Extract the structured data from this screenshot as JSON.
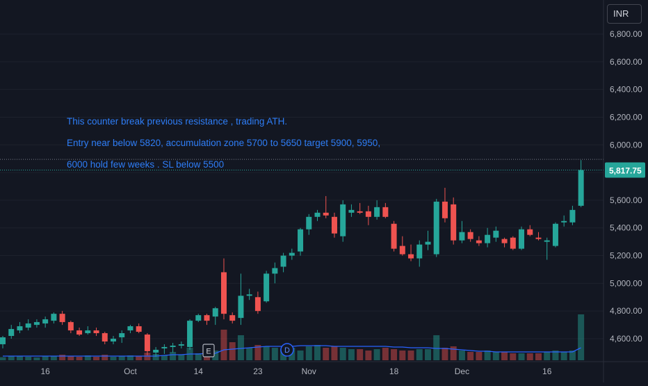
{
  "currency_button": "INR",
  "current_price_label": "5,817.75",
  "annotation": {
    "line1": "This counter break previous resistance , trading ATH.",
    "line2": "Entry near below 5820, accumulation zone 5700 to 5650 target 5900, 5950,",
    "line3": "6000 hold few weeks . SL below 5500"
  },
  "markers": {
    "earnings": "E",
    "dividend": "D"
  },
  "colors": {
    "up": "#26a69a",
    "down": "#ef5350",
    "background": "#131722",
    "annotation": "#2e7df6",
    "volume_ma": "#2962ff"
  },
  "chart_data": {
    "type": "candlestick",
    "y_axis": {
      "range": [
        4470,
        6900
      ],
      "ticks": [
        "4,600.00",
        "4,800.00",
        "5,000.00",
        "5,200.00",
        "5,400.00",
        "5,600.00",
        "5,800.00",
        "6,000.00",
        "6,200.00",
        "6,400.00",
        "6,600.00",
        "6,800.00"
      ]
    },
    "x_axis": {
      "tick_labels": [
        "16",
        "Oct",
        "14",
        "23",
        "Nov",
        "18",
        "Dec",
        "16"
      ],
      "tick_bar_index": [
        5,
        15,
        23,
        30,
        36,
        46,
        54,
        64
      ]
    },
    "last_price": 5817.75,
    "dotted_high_level": 5895,
    "candles": [
      {
        "o": 4560,
        "h": 4620,
        "l": 4530,
        "c": 4610
      },
      {
        "o": 4620,
        "h": 4700,
        "l": 4600,
        "c": 4670
      },
      {
        "o": 4660,
        "h": 4720,
        "l": 4640,
        "c": 4690
      },
      {
        "o": 4680,
        "h": 4740,
        "l": 4660,
        "c": 4710
      },
      {
        "o": 4700,
        "h": 4740,
        "l": 4680,
        "c": 4720
      },
      {
        "o": 4710,
        "h": 4760,
        "l": 4680,
        "c": 4740
      },
      {
        "o": 4730,
        "h": 4790,
        "l": 4710,
        "c": 4780
      },
      {
        "o": 4780,
        "h": 4800,
        "l": 4700,
        "c": 4720
      },
      {
        "o": 4720,
        "h": 4730,
        "l": 4640,
        "c": 4660
      },
      {
        "o": 4660,
        "h": 4680,
        "l": 4620,
        "c": 4630
      },
      {
        "o": 4640,
        "h": 4690,
        "l": 4630,
        "c": 4660
      },
      {
        "o": 4660,
        "h": 4680,
        "l": 4620,
        "c": 4640
      },
      {
        "o": 4640,
        "h": 4650,
        "l": 4560,
        "c": 4580
      },
      {
        "o": 4580,
        "h": 4620,
        "l": 4560,
        "c": 4600
      },
      {
        "o": 4610,
        "h": 4660,
        "l": 4570,
        "c": 4640
      },
      {
        "o": 4660,
        "h": 4700,
        "l": 4640,
        "c": 4690
      },
      {
        "o": 4690,
        "h": 4710,
        "l": 4640,
        "c": 4650
      },
      {
        "o": 4630,
        "h": 4640,
        "l": 4480,
        "c": 4510
      },
      {
        "o": 4500,
        "h": 4540,
        "l": 4470,
        "c": 4520
      },
      {
        "o": 4530,
        "h": 4560,
        "l": 4490,
        "c": 4540
      },
      {
        "o": 4540,
        "h": 4570,
        "l": 4500,
        "c": 4550
      },
      {
        "o": 4550,
        "h": 4580,
        "l": 4530,
        "c": 4560
      },
      {
        "o": 4540,
        "h": 4740,
        "l": 4520,
        "c": 4730
      },
      {
        "o": 4730,
        "h": 4780,
        "l": 4720,
        "c": 4770
      },
      {
        "o": 4770,
        "h": 4780,
        "l": 4700,
        "c": 4730
      },
      {
        "o": 4760,
        "h": 4830,
        "l": 4700,
        "c": 4820
      },
      {
        "o": 5080,
        "h": 5180,
        "l": 4740,
        "c": 4780
      },
      {
        "o": 4770,
        "h": 4790,
        "l": 4710,
        "c": 4730
      },
      {
        "o": 4750,
        "h": 5070,
        "l": 4700,
        "c": 4910
      },
      {
        "o": 4910,
        "h": 4960,
        "l": 4880,
        "c": 4920
      },
      {
        "o": 4900,
        "h": 4940,
        "l": 4780,
        "c": 4800
      },
      {
        "o": 4870,
        "h": 5090,
        "l": 4860,
        "c": 5070
      },
      {
        "o": 5070,
        "h": 5150,
        "l": 5000,
        "c": 5110
      },
      {
        "o": 5120,
        "h": 5220,
        "l": 5080,
        "c": 5200
      },
      {
        "o": 5200,
        "h": 5250,
        "l": 5170,
        "c": 5220
      },
      {
        "o": 5230,
        "h": 5400,
        "l": 5200,
        "c": 5390
      },
      {
        "o": 5390,
        "h": 5500,
        "l": 5350,
        "c": 5480
      },
      {
        "o": 5480,
        "h": 5530,
        "l": 5450,
        "c": 5510
      },
      {
        "o": 5510,
        "h": 5630,
        "l": 5470,
        "c": 5490
      },
      {
        "o": 5480,
        "h": 5510,
        "l": 5330,
        "c": 5360
      },
      {
        "o": 5340,
        "h": 5600,
        "l": 5300,
        "c": 5570
      },
      {
        "o": 5510,
        "h": 5570,
        "l": 5480,
        "c": 5530
      },
      {
        "o": 5520,
        "h": 5580,
        "l": 5500,
        "c": 5510
      },
      {
        "o": 5520,
        "h": 5560,
        "l": 5420,
        "c": 5480
      },
      {
        "o": 5480,
        "h": 5600,
        "l": 5460,
        "c": 5550
      },
      {
        "o": 5550,
        "h": 5580,
        "l": 5470,
        "c": 5480
      },
      {
        "o": 5430,
        "h": 5450,
        "l": 5230,
        "c": 5250
      },
      {
        "o": 5270,
        "h": 5340,
        "l": 5200,
        "c": 5210
      },
      {
        "o": 5210,
        "h": 5280,
        "l": 5160,
        "c": 5180
      },
      {
        "o": 5180,
        "h": 5310,
        "l": 5120,
        "c": 5280
      },
      {
        "o": 5280,
        "h": 5380,
        "l": 5240,
        "c": 5300
      },
      {
        "o": 5210,
        "h": 5610,
        "l": 5190,
        "c": 5590
      },
      {
        "o": 5590,
        "h": 5690,
        "l": 5440,
        "c": 5470
      },
      {
        "o": 5570,
        "h": 5620,
        "l": 5280,
        "c": 5310
      },
      {
        "o": 5310,
        "h": 5450,
        "l": 5290,
        "c": 5370
      },
      {
        "o": 5370,
        "h": 5390,
        "l": 5300,
        "c": 5320
      },
      {
        "o": 5310,
        "h": 5340,
        "l": 5270,
        "c": 5290
      },
      {
        "o": 5290,
        "h": 5400,
        "l": 5260,
        "c": 5350
      },
      {
        "o": 5330,
        "h": 5410,
        "l": 5300,
        "c": 5380
      },
      {
        "o": 5320,
        "h": 5330,
        "l": 5260,
        "c": 5290
      },
      {
        "o": 5330,
        "h": 5340,
        "l": 5240,
        "c": 5250
      },
      {
        "o": 5250,
        "h": 5410,
        "l": 5240,
        "c": 5390
      },
      {
        "o": 5390,
        "h": 5420,
        "l": 5340,
        "c": 5350
      },
      {
        "o": 5330,
        "h": 5370,
        "l": 5310,
        "c": 5320
      },
      {
        "o": 5300,
        "h": 5330,
        "l": 5170,
        "c": 5310
      },
      {
        "o": 5270,
        "h": 5440,
        "l": 5260,
        "c": 5430
      },
      {
        "o": 5440,
        "h": 5490,
        "l": 5410,
        "c": 5450
      },
      {
        "o": 5440,
        "h": 5560,
        "l": 5420,
        "c": 5530
      },
      {
        "o": 5560,
        "h": 5890,
        "l": 5550,
        "c": 5818
      }
    ],
    "volume": [
      0.22,
      0.3,
      0.28,
      0.25,
      0.2,
      0.3,
      0.32,
      0.4,
      0.3,
      0.25,
      0.35,
      0.25,
      0.4,
      0.25,
      0.3,
      0.35,
      0.3,
      0.55,
      0.45,
      0.35,
      0.6,
      0.4,
      0.9,
      0.5,
      0.6,
      0.7,
      2.2,
      1.3,
      1.8,
      0.9,
      1.1,
      1.0,
      0.9,
      0.8,
      0.9,
      0.7,
      1.0,
      1.1,
      0.9,
      1.0,
      0.9,
      0.8,
      0.8,
      0.7,
      0.8,
      0.9,
      0.8,
      0.7,
      0.7,
      0.8,
      0.8,
      1.8,
      0.9,
      1.0,
      0.7,
      0.6,
      0.6,
      0.7,
      0.6,
      0.6,
      0.5,
      0.5,
      0.5,
      0.5,
      0.6,
      0.7,
      0.6,
      0.7,
      3.3
    ],
    "volume_ma": [
      0.3,
      0.3,
      0.3,
      0.3,
      0.3,
      0.3,
      0.3,
      0.3,
      0.3,
      0.3,
      0.3,
      0.3,
      0.3,
      0.3,
      0.3,
      0.3,
      0.3,
      0.3,
      0.3,
      0.35,
      0.4,
      0.4,
      0.45,
      0.45,
      0.5,
      0.5,
      0.75,
      0.8,
      0.85,
      0.9,
      0.95,
      1.0,
      1.0,
      1.0,
      1.0,
      1.05,
      1.05,
      1.05,
      1.05,
      1.0,
      1.0,
      1.0,
      1.0,
      1.0,
      1.0,
      1.0,
      0.95,
      0.95,
      0.9,
      0.9,
      0.9,
      0.85,
      0.85,
      0.8,
      0.75,
      0.7,
      0.65,
      0.65,
      0.6,
      0.6,
      0.6,
      0.6,
      0.6,
      0.6,
      0.6,
      0.6,
      0.6,
      0.6,
      0.9
    ]
  }
}
